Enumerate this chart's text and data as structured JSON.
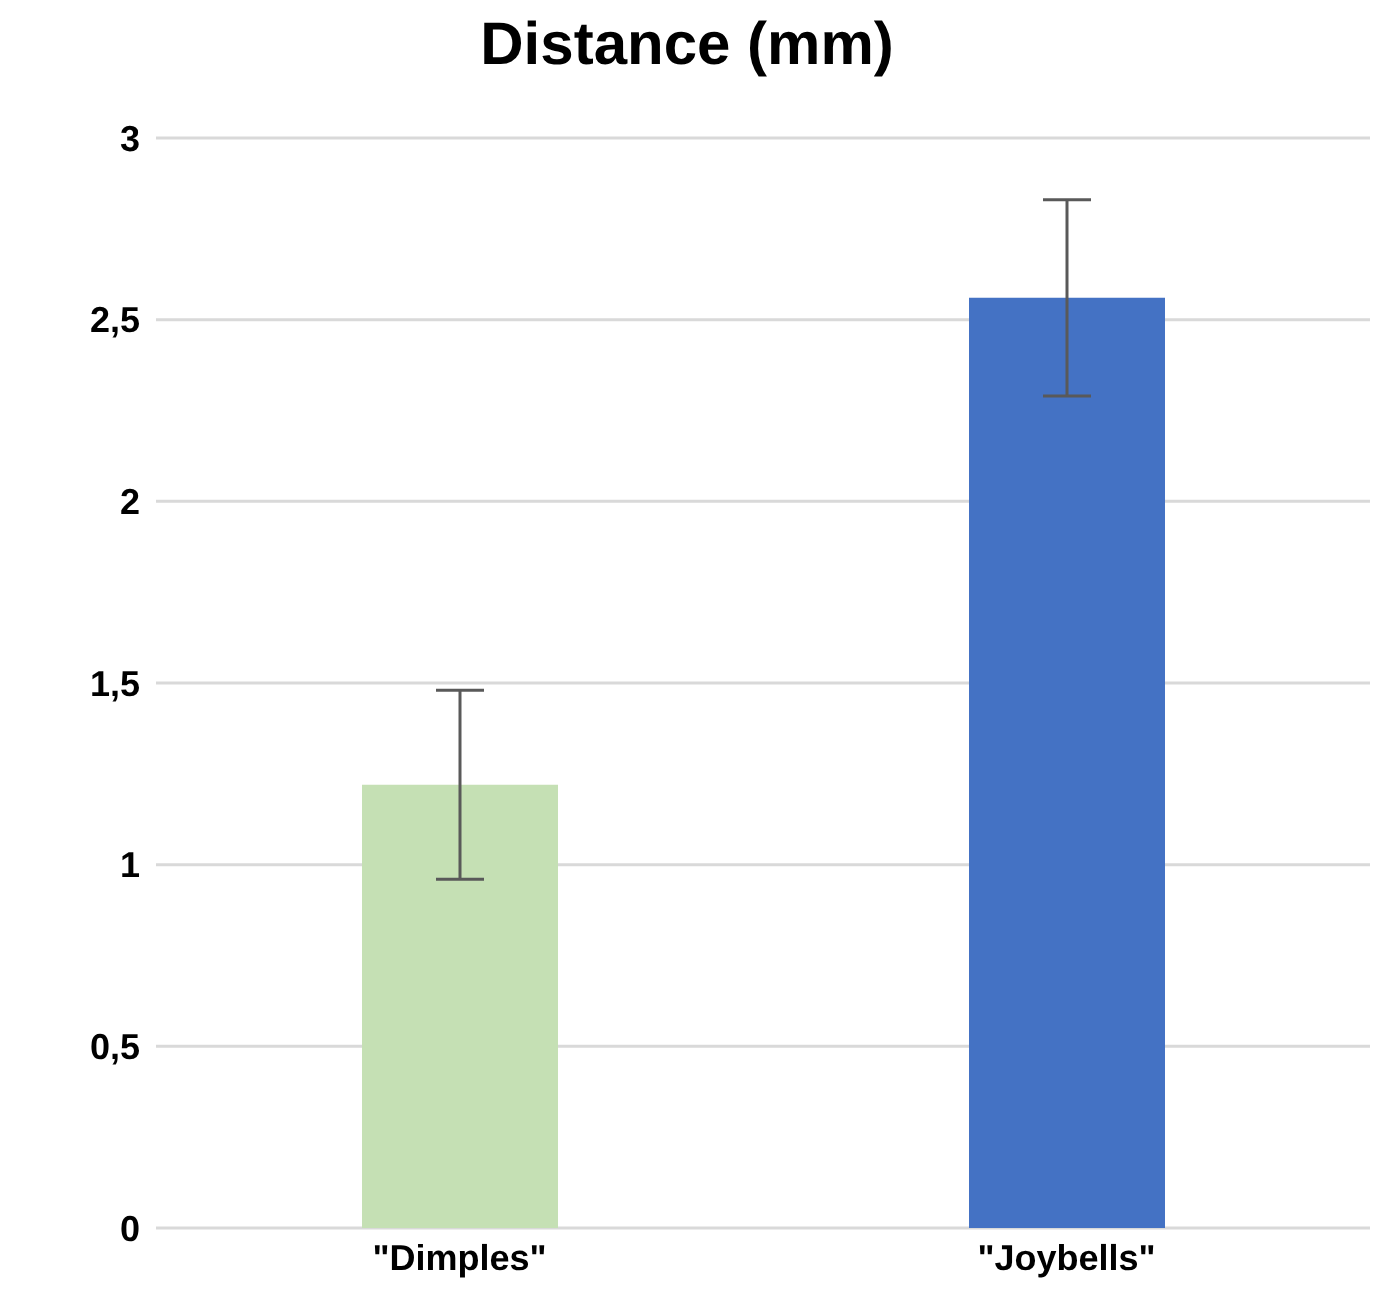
{
  "chart_data": {
    "type": "bar",
    "title": "Distance (mm)",
    "categories": [
      "\"Dimples\"",
      "\"Joybells\""
    ],
    "values": [
      1.22,
      2.56
    ],
    "colors": [
      "#c5e0b4",
      "#4472c4"
    ],
    "errors": [
      0.26,
      0.27
    ],
    "ylim": [
      0,
      3
    ],
    "yticks": [
      0,
      {
        "value": 0.5,
        "label": "0,5"
      },
      1,
      {
        "value": 1.5,
        "label": "1,5"
      },
      2,
      {
        "value": 2.5,
        "label": "2,5"
      },
      3
    ],
    "grid": "y"
  }
}
